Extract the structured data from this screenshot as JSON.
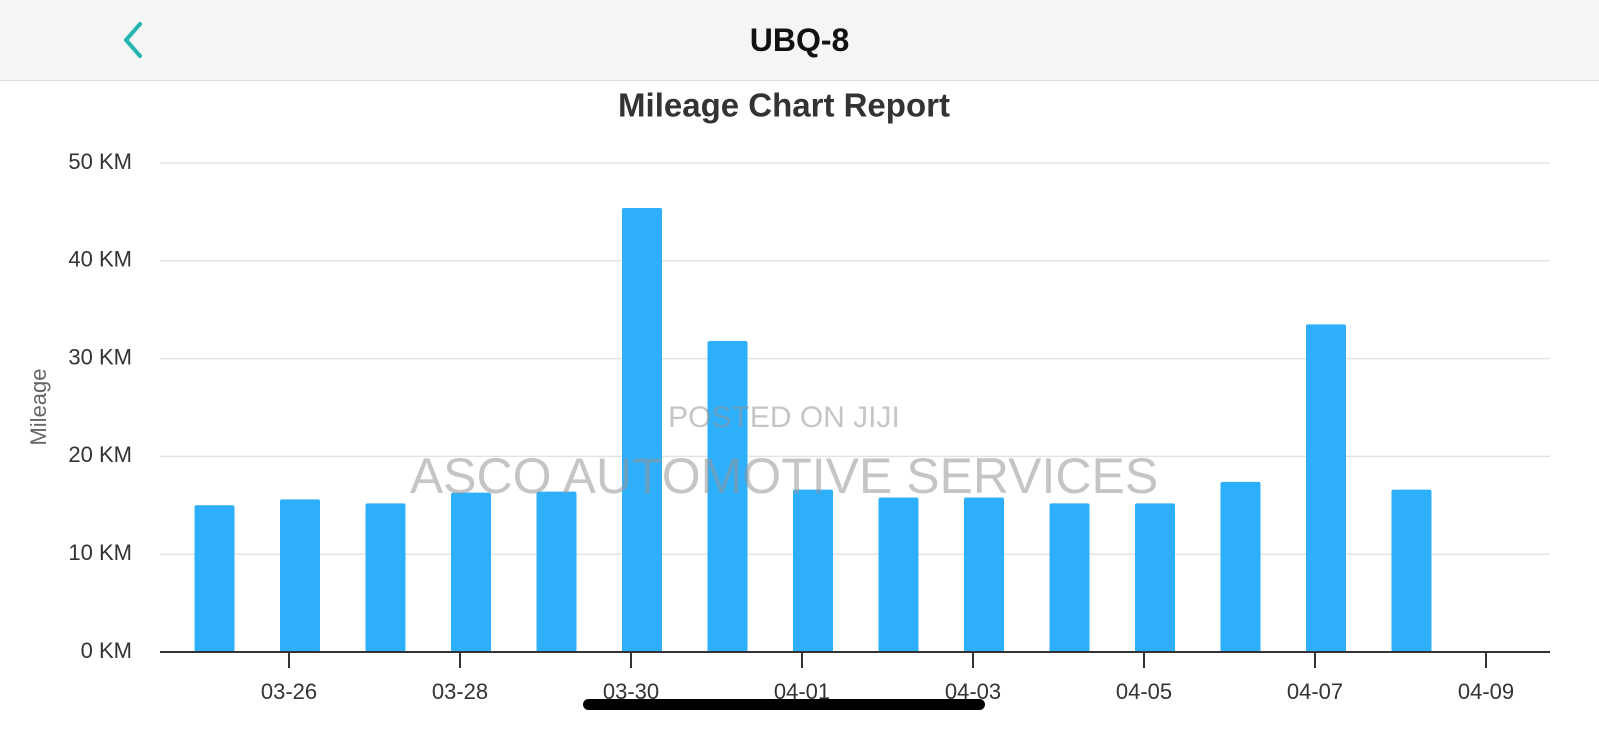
{
  "header": {
    "title": "UBQ-8"
  },
  "watermark": {
    "line1": "POSTED ON JIJI",
    "line2": "ASCO AUTOMOTIVE SERVICES"
  },
  "chart_data": {
    "type": "bar",
    "title": "Mileage Chart Report",
    "y_label": "Mileage",
    "categories": [
      null,
      "03-26",
      null,
      "03-28",
      null,
      "03-30",
      null,
      "04-01",
      null,
      "04-03",
      null,
      "04-05",
      null,
      "04-07",
      null,
      "04-09"
    ],
    "values": [
      15.0,
      15.6,
      15.2,
      16.3,
      16.4,
      45.4,
      31.8,
      16.6,
      15.8,
      15.8,
      15.2,
      15.2,
      17.4,
      33.5,
      16.6,
      null
    ],
    "color": "#2eaffc",
    "ylim": [
      0,
      50
    ],
    "yticks": [
      {
        "value": 0,
        "label": "0 KM"
      },
      {
        "value": 10,
        "label": "10 KM"
      },
      {
        "value": 20,
        "label": "20 KM"
      },
      {
        "value": 30,
        "label": "30 KM"
      },
      {
        "value": 40,
        "label": "40 KM"
      },
      {
        "value": 50,
        "label": "50 KM"
      }
    ],
    "grid": true
  }
}
